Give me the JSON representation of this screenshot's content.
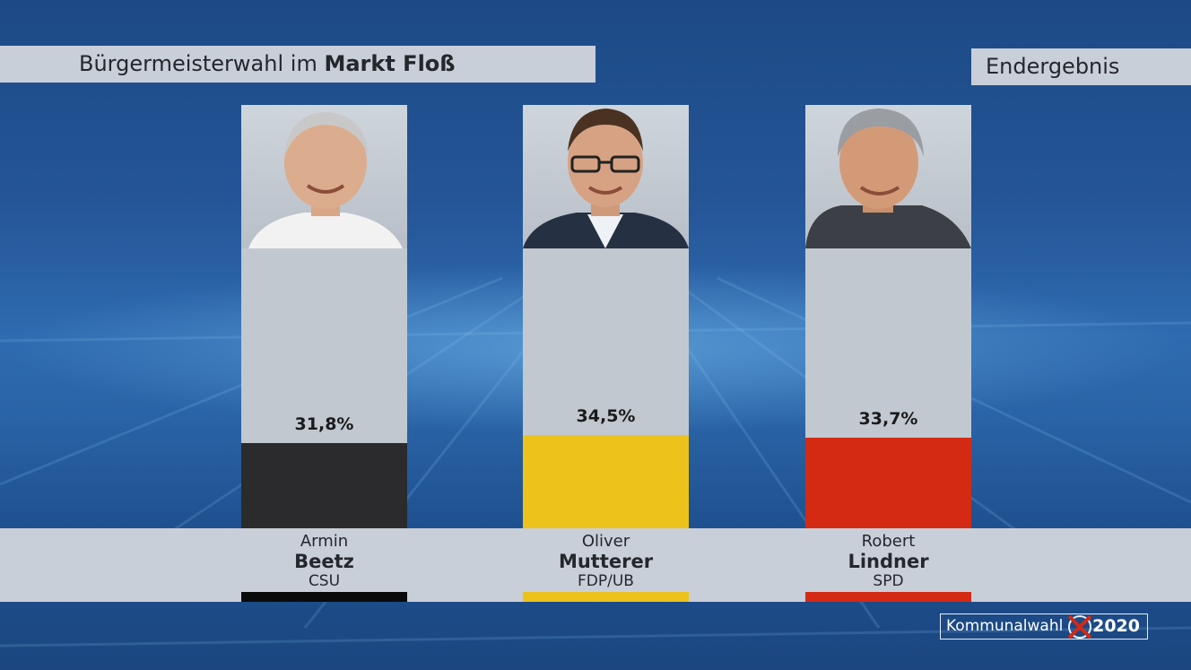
{
  "header": {
    "title_prefix": "Bürgermeisterwahl im",
    "title_place": "Markt Floß",
    "status": "Endergebnis"
  },
  "logo": {
    "text": "Kommunalwahl",
    "year": "2020",
    "icon": "ballot-cross-icon"
  },
  "colors": {
    "CSU": "#2b2b2d",
    "FDP/UB": "#edc21a",
    "SPD": "#d42a14",
    "panel": "#c2c8d0"
  },
  "chart_data": {
    "type": "bar",
    "title": "Bürgermeisterwahl im Markt Floß",
    "subtitle": "Endergebnis",
    "categories": [
      "Armin Beetz",
      "Oliver Mutterer",
      "Robert Lindner"
    ],
    "values": [
      31.8,
      34.5,
      33.7
    ],
    "value_labels": [
      "31,8%",
      "34,5%",
      "33,7%"
    ],
    "unit": "%",
    "ylim": [
      0,
      100
    ],
    "grid": false,
    "candidates": [
      {
        "first": "Armin",
        "last": "Beetz",
        "party": "CSU",
        "value": 31.8,
        "label": "31,8%",
        "color": "#2b2b2d"
      },
      {
        "first": "Oliver",
        "last": "Mutterer",
        "party": "FDP/UB",
        "value": 34.5,
        "label": "34,5%",
        "color": "#edc21a"
      },
      {
        "first": "Robert",
        "last": "Lindner",
        "party": "SPD",
        "value": 33.7,
        "label": "33,7%",
        "color": "#d42a14"
      }
    ]
  }
}
